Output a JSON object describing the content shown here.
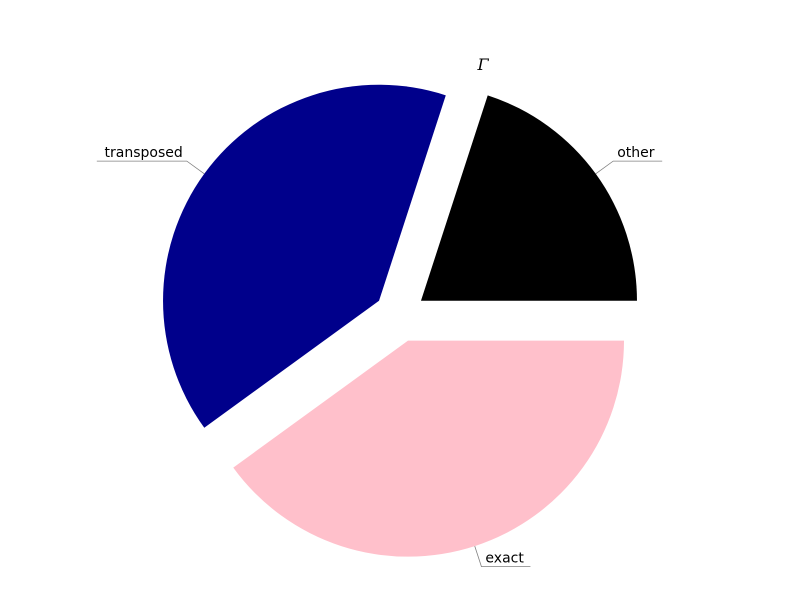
{
  "chart_data": {
    "type": "pie",
    "title": "Γ",
    "slices": [
      {
        "label": "other",
        "value": 20,
        "color": "#000000"
      },
      {
        "label": "transposed",
        "value": 40,
        "color": "#00008b"
      },
      {
        "label": "exact",
        "value": 40,
        "color": "#ffc0cb"
      }
    ],
    "start_angle_deg": 0,
    "direction": "counterclockwise",
    "exploded": true
  }
}
